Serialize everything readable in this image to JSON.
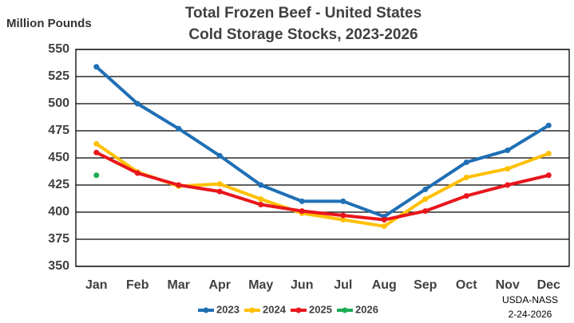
{
  "chart_data": {
    "type": "line",
    "title": "Total Frozen Beef - United States",
    "subtitle": "Cold Storage Stocks, 2023-2026",
    "y_label": "Million Pounds",
    "annotations": [
      "USDA-NASS",
      "2-24-2026"
    ],
    "categories": [
      "Jan",
      "Feb",
      "Mar",
      "Apr",
      "May",
      "Jun",
      "Jul",
      "Aug",
      "Sep",
      "Oct",
      "Nov",
      "Dec"
    ],
    "series": [
      {
        "name": "2023",
        "color": "#1f6fb5",
        "values": [
          534,
          500,
          477,
          452,
          425,
          410,
          410,
          396,
          421,
          446,
          457,
          480
        ]
      },
      {
        "name": "2024",
        "color": "#ffc000",
        "values": [
          463,
          437,
          424,
          426,
          412,
          399,
          393,
          387,
          412,
          432,
          440,
          454
        ]
      },
      {
        "name": "2025",
        "color": "#e8161c",
        "values": [
          455,
          436,
          425,
          419,
          407,
          401,
          397,
          393,
          401,
          415,
          425,
          434
        ]
      },
      {
        "name": "2026",
        "color": "#1aad55",
        "values": [
          434,
          null,
          null,
          null,
          null,
          null,
          null,
          null,
          null,
          null,
          null,
          null
        ]
      }
    ],
    "ylim": [
      350,
      550
    ],
    "yticks": [
      350,
      375,
      400,
      425,
      450,
      475,
      500,
      525,
      550
    ],
    "grid": true,
    "legend": "bottom"
  }
}
